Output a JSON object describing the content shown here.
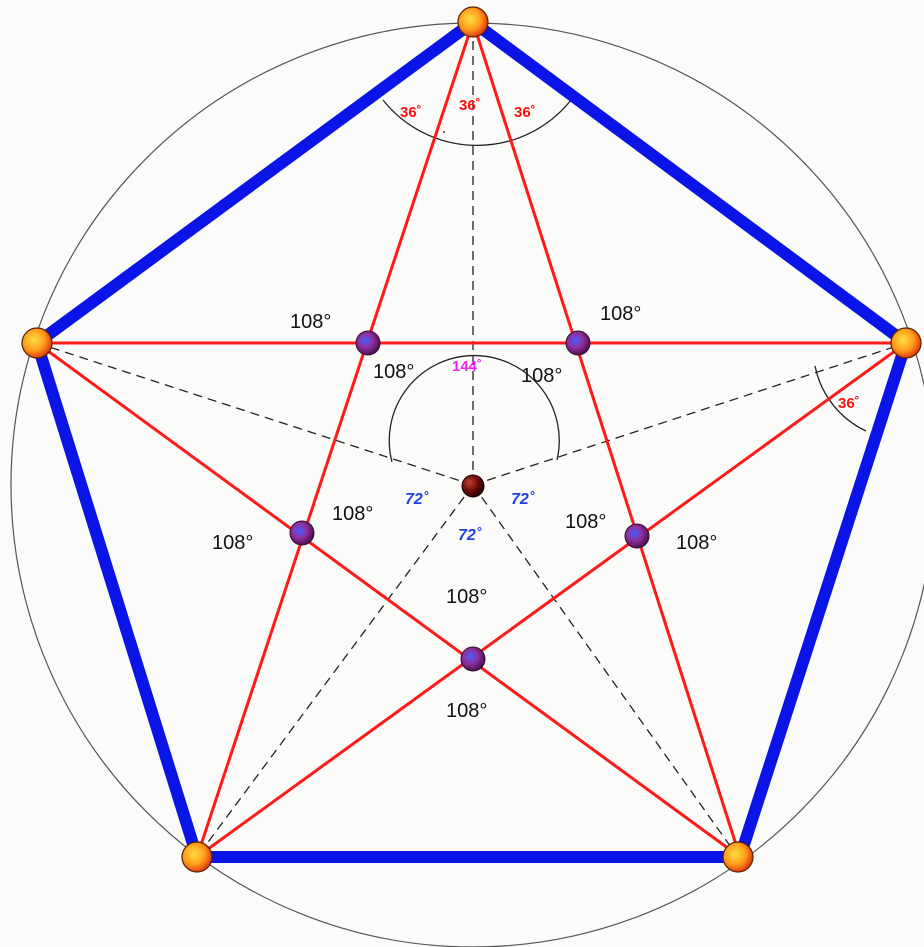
{
  "angles": {
    "apex_left": "36˚",
    "apex_mid": "36˚",
    "apex_right": "36˚",
    "right_vertex": "36˚",
    "center_obtuse": "144˚",
    "center_left": "72˚",
    "center_right": "72˚",
    "center_bottom": "72˚",
    "inner_top_left_outer": "108°",
    "inner_top_left_inner": "108°",
    "inner_top_right_outer": "108°",
    "inner_top_right_inner": "108°",
    "inner_left_outer": "108°",
    "inner_left_inner": "108°",
    "inner_right_inner": "108°",
    "inner_right_outer": "108°",
    "inner_bottom_inner": "108°",
    "inner_bottom_outer": "108°"
  },
  "colors": {
    "pentagon": "#0a14e6",
    "star": "#ff1a1a",
    "circle": "#555555",
    "dashed": "#222222",
    "red_label": "#ff1010",
    "blue_label": "#2040e0",
    "magenta_label": "#ee22ee"
  }
}
